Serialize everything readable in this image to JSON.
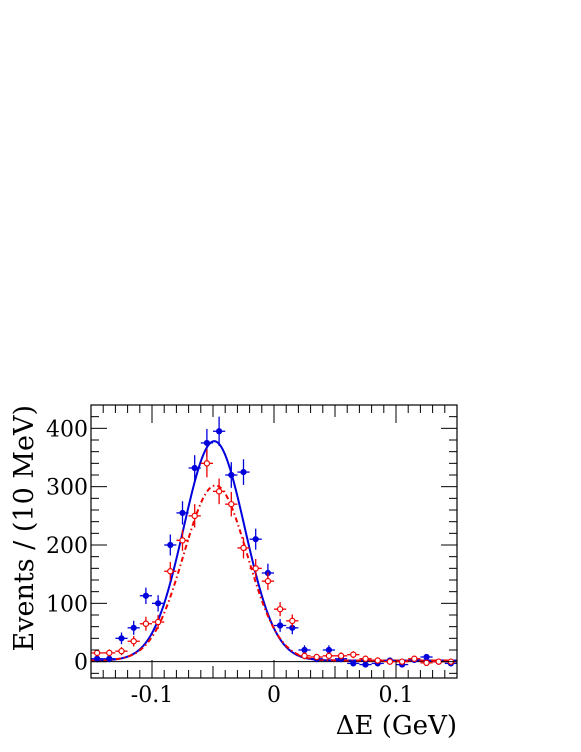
{
  "chart_data": {
    "type": "scatter",
    "title": "",
    "xlabel": "ΔE (GeV)",
    "ylabel": "Events / (10 MeV)",
    "xlim": [
      -0.15,
      0.15
    ],
    "ylim": [
      -28,
      440
    ],
    "x_ticks": [
      -0.1,
      0,
      0.1
    ],
    "x_tick_labels": [
      "-0.1",
      "0",
      "0.1"
    ],
    "y_ticks": [
      0,
      100,
      200,
      300,
      400
    ],
    "y_tick_labels": [
      "0",
      "100",
      "200",
      "300",
      "400"
    ],
    "grid": false,
    "legend": "none",
    "series": [
      {
        "marker": "filled-circle",
        "color": "#0000dd",
        "x": [
          -0.145,
          -0.135,
          -0.125,
          -0.115,
          -0.105,
          -0.095,
          -0.085,
          -0.075,
          -0.065,
          -0.055,
          -0.045,
          -0.035,
          -0.025,
          -0.015,
          -0.005,
          0.005,
          0.015,
          0.025,
          0.035,
          0.045,
          0.055,
          0.065,
          0.075,
          0.085,
          0.095,
          0.105,
          0.115,
          0.125,
          0.135,
          0.145
        ],
        "y": [
          5,
          5,
          40,
          58,
          113,
          100,
          200,
          255,
          332,
          375,
          395,
          320,
          325,
          210,
          152,
          62,
          58,
          20,
          5,
          20,
          5,
          -3,
          -5,
          -3,
          2,
          -5,
          3,
          8,
          0,
          -3
        ],
        "yerr": [
          6,
          6,
          10,
          12,
          14,
          14,
          18,
          20,
          22,
          24,
          25,
          22,
          22,
          18,
          16,
          11,
          11,
          8,
          6,
          8,
          6,
          5,
          5,
          5,
          5,
          5,
          5,
          5,
          5,
          5
        ]
      },
      {
        "marker": "open-circle",
        "color": "#ee0000",
        "x": [
          -0.145,
          -0.135,
          -0.125,
          -0.115,
          -0.105,
          -0.095,
          -0.085,
          -0.075,
          -0.065,
          -0.055,
          -0.045,
          -0.035,
          -0.025,
          -0.015,
          -0.005,
          0.005,
          0.015,
          0.025,
          0.035,
          0.045,
          0.055,
          0.065,
          0.075,
          0.085,
          0.095,
          0.105,
          0.115,
          0.125,
          0.135,
          0.145
        ],
        "y": [
          15,
          15,
          18,
          35,
          65,
          68,
          155,
          208,
          250,
          340,
          292,
          270,
          195,
          160,
          138,
          90,
          70,
          10,
          8,
          10,
          10,
          12,
          5,
          2,
          0,
          0,
          5,
          -2,
          0,
          0
        ],
        "yerr": [
          6,
          6,
          7,
          9,
          12,
          12,
          16,
          18,
          20,
          24,
          22,
          21,
          18,
          16,
          15,
          12,
          11,
          6,
          5,
          6,
          6,
          6,
          5,
          5,
          5,
          5,
          5,
          5,
          5,
          5
        ]
      }
    ],
    "fits": [
      {
        "style": "solid",
        "color": "#0000dd",
        "peak": 378,
        "mean": -0.049,
        "sigma": 0.025,
        "baseline": 2
      },
      {
        "style": "dash-dot",
        "color": "#ee0000",
        "peak": 302,
        "mean": -0.048,
        "sigma": 0.026,
        "baseline": 2
      }
    ],
    "zero_line": 0
  }
}
